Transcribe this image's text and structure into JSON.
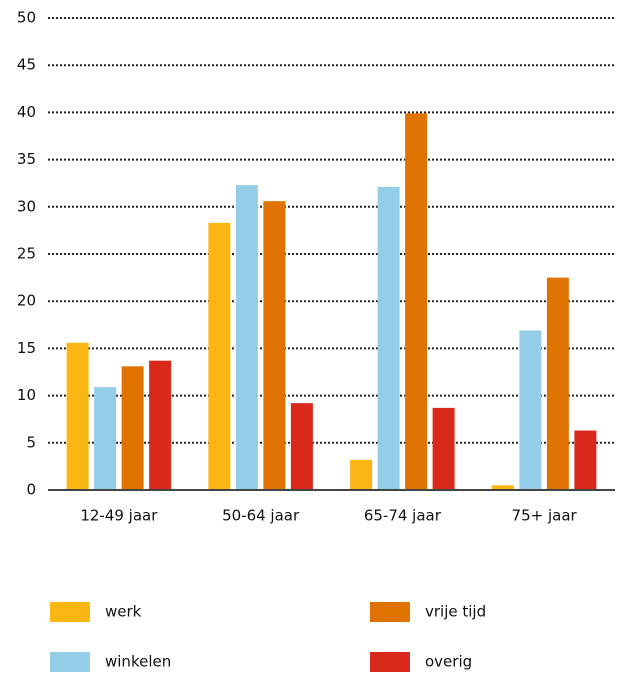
{
  "chart_data": {
    "type": "bar",
    "categories": [
      "12-49 jaar",
      "50-64 jaar",
      "65-74 jaar",
      "75+ jaar"
    ],
    "series": [
      {
        "name": "werk",
        "color": "#fbb614",
        "values": [
          15.6,
          28.3,
          3.2,
          0.5
        ]
      },
      {
        "name": "winkelen",
        "color": "#94cde8",
        "values": [
          10.9,
          32.3,
          32.1,
          16.9
        ]
      },
      {
        "name": "vrije tijd",
        "color": "#e07200",
        "values": [
          13.1,
          30.6,
          39.9,
          22.5
        ]
      },
      {
        "name": "overig",
        "color": "#d8291c",
        "values": [
          13.7,
          9.2,
          8.7,
          6.3
        ]
      }
    ],
    "ylim": [
      0,
      50
    ],
    "yticks": [
      0,
      5,
      10,
      15,
      20,
      25,
      30,
      35,
      40,
      45,
      50
    ],
    "grid": true
  }
}
